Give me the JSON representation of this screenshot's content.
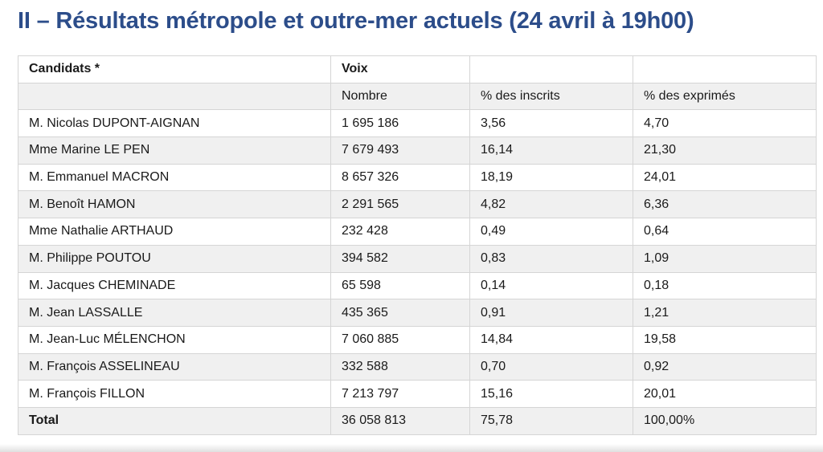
{
  "title": "II – Résultats métropole et outre-mer actuels (24 avril à 19h00)",
  "table": {
    "header1": {
      "candidats": "Candidats *",
      "voix": "Voix",
      "col3": "",
      "col4": ""
    },
    "header2": {
      "col1": "",
      "nombre": "Nombre",
      "pct_inscrits": "% des inscrits",
      "pct_exprimes": "% des exprimés"
    },
    "rows": [
      {
        "name": "M. Nicolas DUPONT-AIGNAN",
        "nombre": "1 695 186",
        "pct_inscrits": "3,56",
        "pct_exprimes": "4,70"
      },
      {
        "name": "Mme Marine LE PEN",
        "nombre": "7 679 493",
        "pct_inscrits": "16,14",
        "pct_exprimes": "21,30"
      },
      {
        "name": "M. Emmanuel MACRON",
        "nombre": "8 657 326",
        "pct_inscrits": "18,19",
        "pct_exprimes": "24,01"
      },
      {
        "name": "M. Benoît HAMON",
        "nombre": "2 291 565",
        "pct_inscrits": "4,82",
        "pct_exprimes": "6,36"
      },
      {
        "name": "Mme Nathalie ARTHAUD",
        "nombre": "232 428",
        "pct_inscrits": "0,49",
        "pct_exprimes": "0,64"
      },
      {
        "name": "M. Philippe POUTOU",
        "nombre": "394 582",
        "pct_inscrits": "0,83",
        "pct_exprimes": "1,09"
      },
      {
        "name": "M. Jacques CHEMINADE",
        "nombre": "65 598",
        "pct_inscrits": "0,14",
        "pct_exprimes": "0,18"
      },
      {
        "name": "M. Jean LASSALLE",
        "nombre": "435 365",
        "pct_inscrits": "0,91",
        "pct_exprimes": "1,21"
      },
      {
        "name": "M. Jean-Luc MÉLENCHON",
        "nombre": "7 060 885",
        "pct_inscrits": "14,84",
        "pct_exprimes": "19,58"
      },
      {
        "name": "M. François ASSELINEAU",
        "nombre": "332 588",
        "pct_inscrits": "0,70",
        "pct_exprimes": "0,92"
      },
      {
        "name": "M. François FILLON",
        "nombre": "7 213 797",
        "pct_inscrits": "15,16",
        "pct_exprimes": "20,01"
      }
    ],
    "total": {
      "label": "Total",
      "nombre": "36 058 813",
      "pct_inscrits": "75,78",
      "pct_exprimes": "100,00%"
    }
  },
  "colors": {
    "title": "#2c4d8a",
    "row_alt": "#f0f0f0",
    "border": "#d5d5d5"
  }
}
